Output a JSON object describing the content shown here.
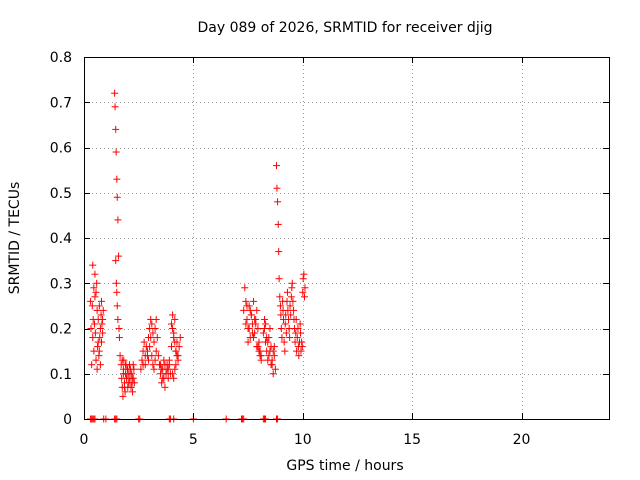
{
  "chart_data": {
    "type": "scatter",
    "title": "Day 089 of 2026, SRMTID for receiver djig",
    "xlabel": "GPS time / hours",
    "ylabel": "SRMTID / TECUs",
    "xlim": [
      0,
      24
    ],
    "ylim": [
      0,
      0.8
    ],
    "x_ticks": [
      0,
      5,
      10,
      15,
      20
    ],
    "x_tick_labels": [
      "0",
      "5",
      "10",
      "15",
      "20"
    ],
    "y_ticks": [
      0,
      0.1,
      0.2,
      0.3,
      0.4,
      0.5,
      0.6,
      0.7,
      0.8
    ],
    "y_tick_labels": [
      "0",
      "0.1",
      "0.2",
      "0.3",
      "0.4",
      "0.5",
      "0.6",
      "0.7",
      "0.8"
    ],
    "grid": true,
    "marker": "+",
    "color": "#ff0000",
    "series": [
      {
        "name": "SRMTID",
        "x": [
          0.3,
          0.32,
          0.35,
          0.38,
          0.4,
          0.42,
          0.45,
          0.48,
          0.5,
          0.52,
          0.55,
          0.58,
          0.6,
          0.62,
          0.65,
          0.68,
          0.7,
          0.72,
          0.75,
          0.78,
          0.8,
          0.82,
          0.85,
          0.88,
          0.4,
          0.45,
          0.5,
          0.55,
          0.6,
          0.65,
          0.7,
          0.75,
          0.8,
          0.85,
          1.4,
          1.42,
          1.45,
          1.47,
          1.5,
          1.52,
          1.55,
          1.58,
          1.45,
          1.48,
          1.5,
          1.52,
          1.55,
          1.6,
          1.62,
          1.65,
          1.7,
          1.72,
          1.75,
          1.78,
          1.8,
          1.82,
          1.85,
          1.88,
          1.9,
          1.92,
          1.95,
          1.98,
          2.0,
          2.02,
          2.05,
          2.08,
          2.1,
          2.12,
          2.15,
          2.18,
          2.2,
          2.22,
          2.25,
          2.28,
          2.3,
          1.75,
          1.8,
          1.85,
          1.9,
          1.95,
          2.0,
          2.05,
          2.1,
          2.15,
          2.2,
          2.25,
          2.6,
          2.65,
          2.7,
          2.75,
          2.8,
          2.85,
          2.9,
          2.95,
          3.0,
          3.05,
          3.1,
          3.15,
          3.2,
          3.25,
          3.3,
          3.35,
          2.9,
          2.95,
          3.0,
          3.05,
          3.1,
          3.15,
          3.2,
          3.25,
          3.3,
          2.7,
          2.8,
          3.4,
          3.45,
          3.5,
          3.55,
          3.6,
          3.65,
          3.7,
          3.75,
          3.8,
          3.85,
          3.9,
          3.95,
          3.5,
          3.55,
          3.6,
          3.65,
          3.7,
          3.75,
          3.8,
          3.85,
          3.9,
          4.0,
          4.05,
          4.1,
          4.15,
          4.2,
          4.25,
          4.3,
          4.35,
          4.4,
          4.05,
          4.1,
          4.15,
          4.2,
          4.25,
          4.3,
          4.0,
          4.05,
          4.1,
          4.15,
          4.2,
          7.3,
          7.35,
          7.4,
          7.45,
          7.5,
          7.55,
          7.6,
          7.65,
          7.7,
          7.75,
          7.8,
          7.85,
          7.9,
          7.95,
          8.0,
          8.05,
          8.1,
          7.4,
          7.5,
          7.6,
          7.7,
          7.8,
          7.9,
          8.0,
          8.1,
          7.45,
          7.55,
          7.65,
          7.75,
          7.85,
          7.95,
          8.05,
          8.2,
          8.25,
          8.3,
          8.35,
          8.4,
          8.45,
          8.5,
          8.55,
          8.6,
          8.65,
          8.7,
          8.75,
          8.3,
          8.4,
          8.5,
          8.6,
          8.7,
          8.25,
          8.35,
          8.45,
          8.55,
          8.65,
          8.8,
          8.82,
          8.85,
          8.88,
          8.9,
          8.92,
          8.95,
          8.98,
          9.0,
          9.02,
          9.05,
          9.08,
          9.1,
          9.12,
          9.15,
          9.18,
          9.2,
          9.22,
          9.25,
          9.28,
          9.3,
          9.32,
          9.35,
          9.38,
          9.4,
          9.42,
          9.45,
          9.48,
          9.5,
          9.52,
          9.55,
          9.58,
          9.6,
          9.62,
          9.65,
          9.68,
          9.7,
          9.72,
          9.75,
          9.78,
          9.8,
          9.82,
          9.85,
          9.88,
          9.9,
          9.92,
          9.95,
          9.98,
          10.0,
          10.02,
          10.05,
          10.08,
          10.1,
          0.3,
          0.35,
          0.4,
          0.45,
          0.5,
          0.9,
          1.0,
          1.4,
          1.45,
          1.5,
          2.5,
          2.55,
          3.9,
          3.95,
          4.1,
          5.0,
          6.5,
          7.2,
          7.25,
          7.3,
          8.2,
          8.25,
          8.3,
          8.8,
          8.85
        ],
        "y": [
          0.26,
          0.2,
          0.12,
          0.25,
          0.18,
          0.22,
          0.15,
          0.21,
          0.27,
          0.19,
          0.13,
          0.3,
          0.24,
          0.16,
          0.22,
          0.14,
          0.25,
          0.18,
          0.2,
          0.23,
          0.17,
          0.21,
          0.19,
          0.24,
          0.34,
          0.29,
          0.32,
          0.28,
          0.11,
          0.17,
          0.15,
          0.12,
          0.26,
          0.22,
          0.72,
          0.69,
          0.64,
          0.59,
          0.53,
          0.49,
          0.44,
          0.36,
          0.35,
          0.3,
          0.28,
          0.25,
          0.22,
          0.2,
          0.18,
          0.14,
          0.12,
          0.09,
          0.07,
          0.05,
          0.11,
          0.13,
          0.08,
          0.06,
          0.1,
          0.12,
          0.09,
          0.11,
          0.07,
          0.1,
          0.08,
          0.12,
          0.09,
          0.11,
          0.07,
          0.1,
          0.08,
          0.06,
          0.09,
          0.11,
          0.08,
          0.13,
          0.1,
          0.07,
          0.12,
          0.09,
          0.11,
          0.08,
          0.1,
          0.07,
          0.09,
          0.12,
          0.11,
          0.13,
          0.15,
          0.17,
          0.12,
          0.16,
          0.14,
          0.18,
          0.2,
          0.22,
          0.21,
          0.19,
          0.17,
          0.2,
          0.22,
          0.18,
          0.15,
          0.13,
          0.16,
          0.18,
          0.14,
          0.12,
          0.11,
          0.13,
          0.15,
          0.12,
          0.14,
          0.14,
          0.12,
          0.1,
          0.08,
          0.11,
          0.09,
          0.07,
          0.1,
          0.12,
          0.11,
          0.13,
          0.1,
          0.12,
          0.11,
          0.09,
          0.13,
          0.12,
          0.1,
          0.11,
          0.09,
          0.12,
          0.16,
          0.2,
          0.18,
          0.22,
          0.15,
          0.17,
          0.14,
          0.16,
          0.18,
          0.1,
          0.09,
          0.11,
          0.12,
          0.14,
          0.13,
          0.21,
          0.23,
          0.19,
          0.17,
          0.15,
          0.24,
          0.29,
          0.26,
          0.22,
          0.2,
          0.25,
          0.18,
          0.23,
          0.21,
          0.26,
          0.19,
          0.22,
          0.24,
          0.2,
          0.17,
          0.15,
          0.13,
          0.21,
          0.17,
          0.24,
          0.19,
          0.22,
          0.16,
          0.15,
          0.14,
          0.25,
          0.2,
          0.23,
          0.18,
          0.21,
          0.16,
          0.14,
          0.19,
          0.22,
          0.17,
          0.15,
          0.13,
          0.18,
          0.2,
          0.16,
          0.12,
          0.1,
          0.14,
          0.11,
          0.21,
          0.17,
          0.15,
          0.13,
          0.16,
          0.2,
          0.18,
          0.14,
          0.12,
          0.15,
          0.56,
          0.51,
          0.48,
          0.43,
          0.37,
          0.31,
          0.27,
          0.25,
          0.23,
          0.2,
          0.18,
          0.26,
          0.24,
          0.22,
          0.17,
          0.15,
          0.21,
          0.23,
          0.19,
          0.26,
          0.28,
          0.24,
          0.22,
          0.2,
          0.18,
          0.25,
          0.23,
          0.27,
          0.29,
          0.3,
          0.26,
          0.24,
          0.22,
          0.2,
          0.17,
          0.19,
          0.22,
          0.15,
          0.18,
          0.2,
          0.16,
          0.14,
          0.17,
          0.21,
          0.19,
          0.15,
          0.17,
          0.16,
          0.28,
          0.31,
          0.32,
          0.27,
          0.29,
          0,
          0,
          0,
          0,
          0,
          0,
          0,
          0,
          0,
          0,
          0,
          0,
          0,
          0,
          0,
          0,
          0,
          0,
          0,
          0,
          0,
          0,
          0,
          0,
          0
        ]
      }
    ]
  }
}
